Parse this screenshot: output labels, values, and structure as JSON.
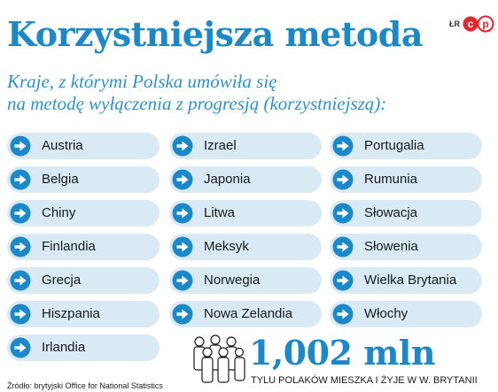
{
  "header": {
    "title": "Korzystniejsza metoda",
    "credit": "ŁR",
    "subtitle_line1": "Kraje, z którymi Polska umówiła się",
    "subtitle_line2": "na metodę wyłączenia z progresją (korzystniejszą):"
  },
  "colors": {
    "accent": "#1a88c9",
    "pill_background": "#d9eaf5",
    "logo_red": "#e3262b"
  },
  "countries": {
    "column1": [
      "Austria",
      "Belgia",
      "Chiny",
      "Finlandia",
      "Grecja",
      "Hiszpania",
      "Irlandia"
    ],
    "column2": [
      "Izrael",
      "Japonia",
      "Litwa",
      "Meksyk",
      "Norwegia",
      "Nowa Zelandia"
    ],
    "column3": [
      "Portugalia",
      "Rumunia",
      "Słowacja",
      "Słowenia",
      "Wielka Brytania",
      "Włochy"
    ]
  },
  "icons": {
    "row_marker": "arrow-right-circle-icon",
    "stat": "people-group-icon"
  },
  "stat": {
    "value": "1,002 mln",
    "caption": "TYLU POLAKÓW MIESZKA I ŻYJE W W. BRYTANII"
  },
  "source": "Źródło: brytyjski Office for National Statistics"
}
